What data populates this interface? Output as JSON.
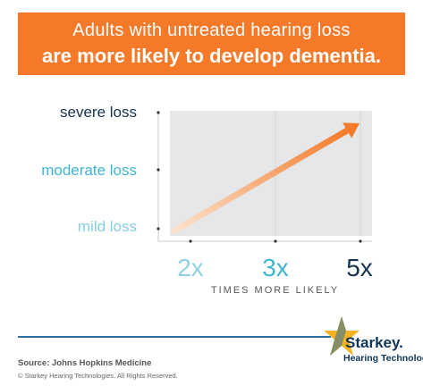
{
  "header": {
    "line1": "Adults with untreated hearing loss",
    "line2": "are more likely to develop dementia."
  },
  "chart_data": {
    "type": "line",
    "x_categories": [
      "2x",
      "3x",
      "5x"
    ],
    "y_categories": [
      "severe loss",
      "moderate loss",
      "mild loss"
    ],
    "xlabel": "TIMES MORE LIKELY",
    "series": [
      {
        "points": [
          {
            "x": "2x",
            "y": "mild loss"
          },
          {
            "x": "3x",
            "y": "moderate loss"
          },
          {
            "x": "5x",
            "y": "severe loss"
          }
        ]
      }
    ],
    "grid": true,
    "gradient_colors": [
      "#fbe3cf",
      "#f47a2a"
    ]
  },
  "footer": {
    "source": "Source: Johns Hopkins Medicine",
    "copyright": "© Starkey Hearing Technologies. All Rights Reserved."
  },
  "logo": {
    "name": "Starkey.",
    "tagline": "Hearing Technologies",
    "icon": "star-icon",
    "star_colors": [
      "#f5b324",
      "#2a6fa0"
    ]
  },
  "colors": {
    "banner": "#f47a2a",
    "dark_navy": "#17324f",
    "teal": "#3fb5cf",
    "light_teal": "#86cfe2"
  }
}
